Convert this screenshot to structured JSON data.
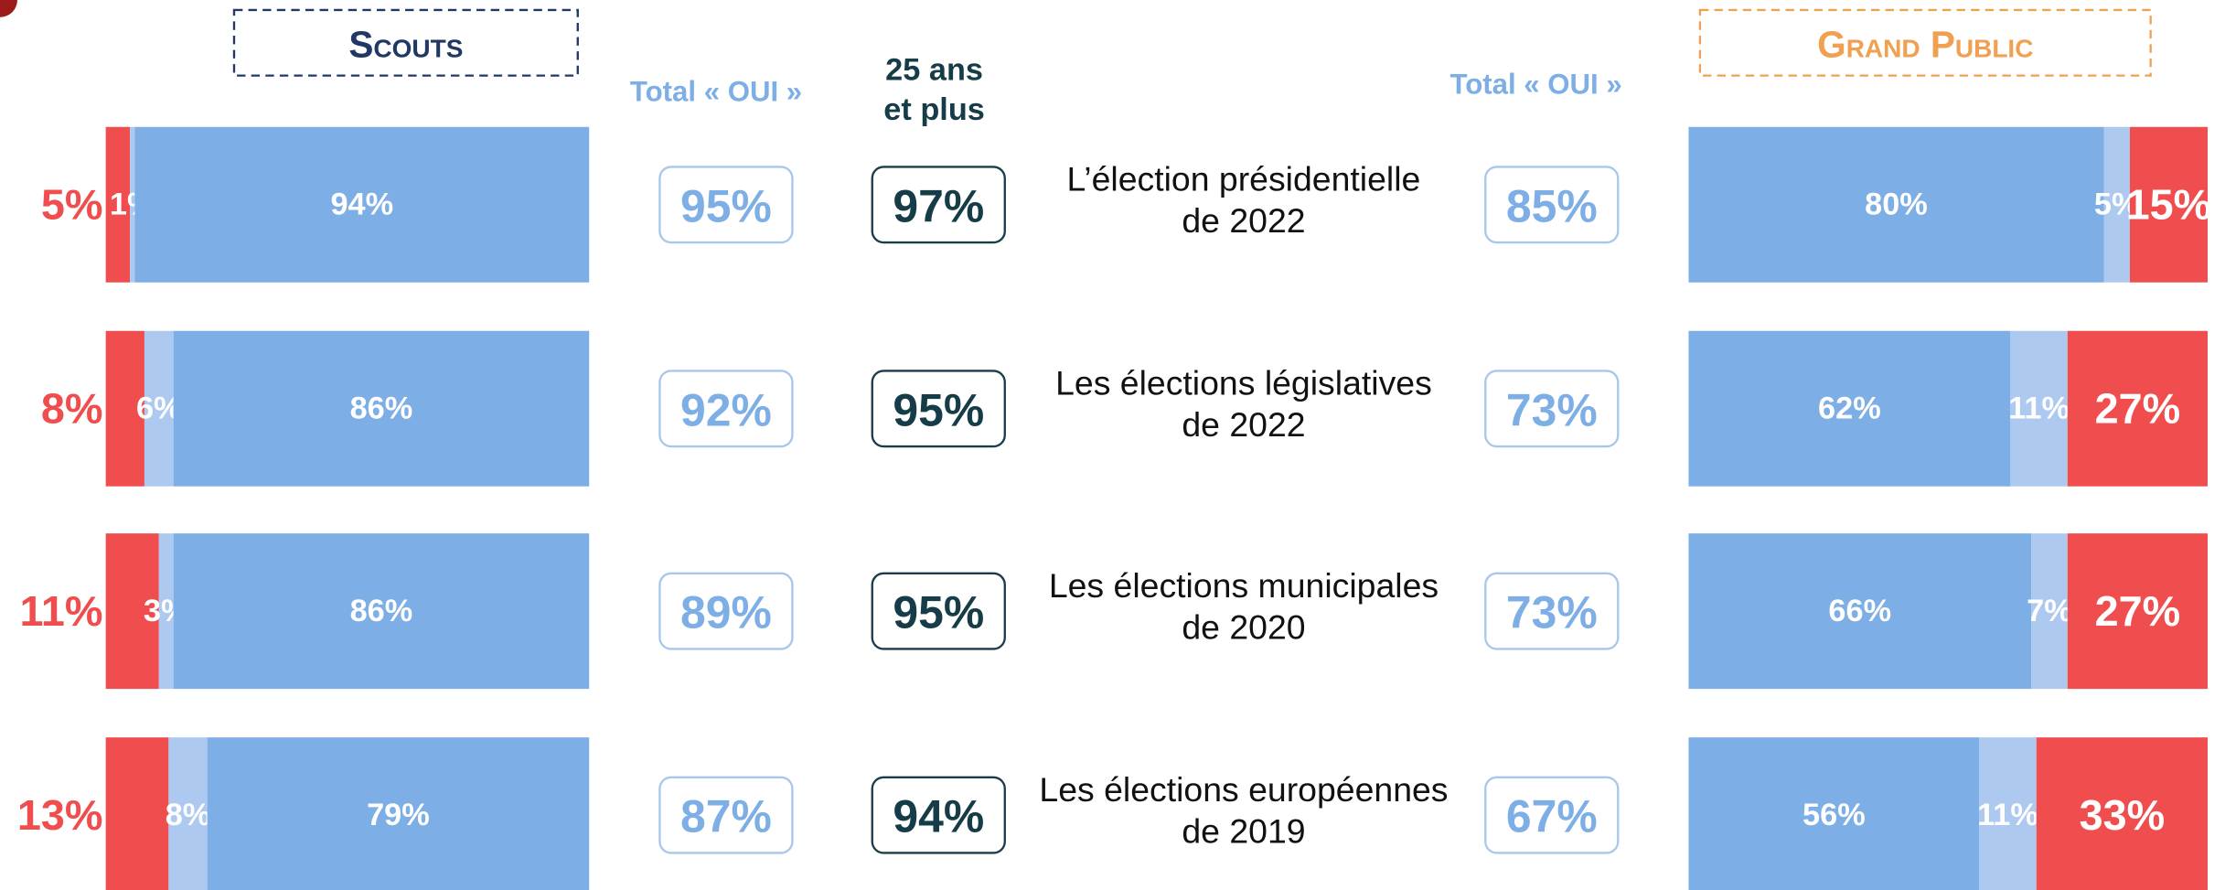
{
  "chart_data": [
    {
      "type": "bar",
      "orientation": "horizontal",
      "stacked": true,
      "direction": "right-to-left-red-first",
      "title": "Scouts",
      "title_color": "#1f3864",
      "xlim": [
        0,
        100
      ],
      "series": [
        {
          "color": "#f04e4e",
          "values": [
            5,
            8,
            11,
            13
          ],
          "value_labels": [
            "5%",
            "8%",
            "11%",
            "13%"
          ],
          "label_position": "outside"
        },
        {
          "color": "#adc9f0",
          "values": [
            1,
            6,
            3,
            8
          ],
          "value_labels": [
            "1%",
            "6%",
            "3%",
            "8%"
          ],
          "label_position": "inside"
        },
        {
          "color": "#7eaee6",
          "values": [
            94,
            86,
            86,
            79
          ],
          "value_labels": [
            "94%",
            "86%",
            "86%",
            "79%"
          ],
          "label_position": "inside"
        }
      ]
    },
    {
      "type": "bar",
      "orientation": "horizontal",
      "stacked": true,
      "direction": "left-to-right-blue-first",
      "title": "Grand Public",
      "title_color": "#f0a050",
      "xlim": [
        0,
        100
      ],
      "series": [
        {
          "color": "#7eaee6",
          "values": [
            80,
            62,
            66,
            56
          ],
          "value_labels": [
            "80%",
            "62%",
            "66%",
            "56%"
          ],
          "label_position": "inside"
        },
        {
          "color": "#adc9f0",
          "values": [
            5,
            11,
            7,
            11
          ],
          "value_labels": [
            "5%",
            "11%",
            "7%",
            "11%"
          ],
          "label_position": "inside"
        },
        {
          "color": "#f04e4e",
          "values": [
            15,
            27,
            27,
            33
          ],
          "value_labels": [
            "15%",
            "27%",
            "27%",
            "33%"
          ],
          "label_position": "inside-large"
        }
      ]
    }
  ],
  "rows": [
    [
      "L’élection présidentielle",
      "de 2022"
    ],
    [
      "Les élections législatives",
      "de 2022"
    ],
    [
      "Les élections municipales",
      "de 2020"
    ],
    [
      "Les élections européennes",
      "de 2019"
    ]
  ],
  "scouts_total": {
    "header": "Total « OUI »",
    "items": [
      "95%",
      "92%",
      "89%",
      "87%"
    ]
  },
  "scouts_25": {
    "header": [
      "25 ans",
      "et plus"
    ],
    "items": [
      "97%",
      "95%",
      "95%",
      "94%"
    ]
  },
  "public_total": {
    "header": "Total « OUI »",
    "items": [
      "85%",
      "73%",
      "73%",
      "67%"
    ]
  }
}
